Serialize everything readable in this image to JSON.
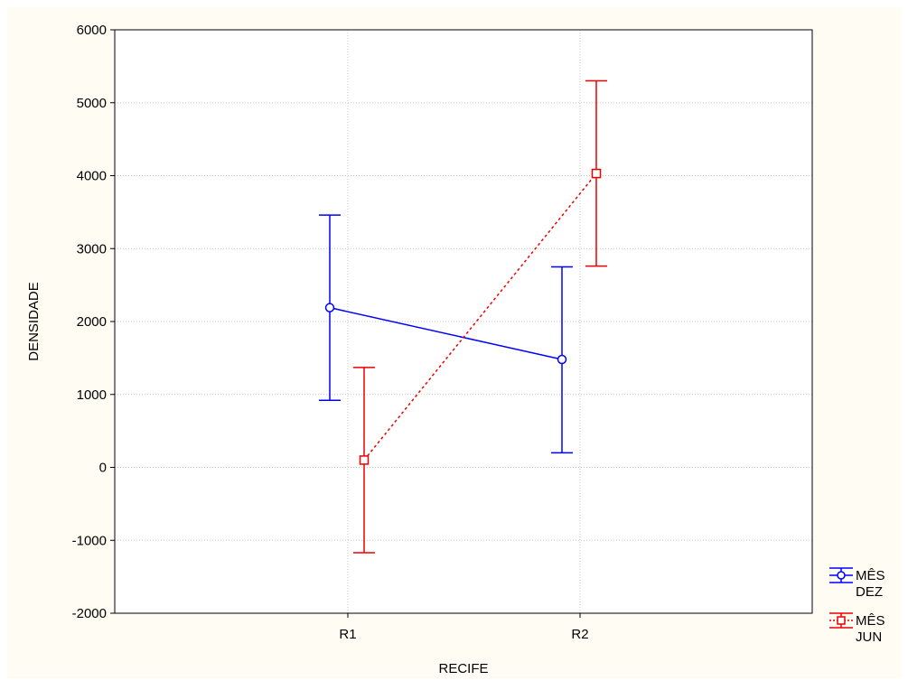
{
  "chart_data": {
    "type": "line",
    "title": "",
    "xlabel": "RECIFE",
    "ylabel": "DENSIDADE",
    "categories": [
      "R1",
      "R2"
    ],
    "ylim": [
      -2000,
      6000
    ],
    "yticks": [
      -2000,
      -1000,
      0,
      1000,
      2000,
      3000,
      4000,
      5000,
      6000
    ],
    "grid": true,
    "legend_position": "right-bottom",
    "series": [
      {
        "name": "MÊS DEZ",
        "legend_lines": [
          "MÊS",
          "DEZ"
        ],
        "color": "#0000ff",
        "marker": "circle",
        "line_style": "solid",
        "values": [
          2190,
          1480
        ],
        "lower": [
          920,
          200
        ],
        "upper": [
          3460,
          2750
        ]
      },
      {
        "name": "MÊS JUN",
        "legend_lines": [
          "MÊS",
          "JUN"
        ],
        "color": "#ee0000",
        "marker": "square",
        "line_style": "dotted",
        "values": [
          100,
          4030
        ],
        "lower": [
          -1170,
          2760
        ],
        "upper": [
          1370,
          5300
        ]
      }
    ]
  }
}
